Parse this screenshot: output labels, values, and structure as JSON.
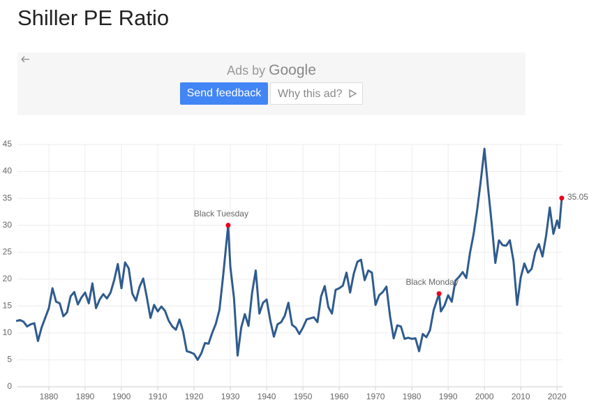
{
  "header": {
    "title": "Shiller PE Ratio"
  },
  "ad": {
    "ads_by": "Ads by",
    "brand": "Google",
    "send_feedback": "Send feedback",
    "why_this_ad": "Why this ad?"
  },
  "chart_data": {
    "type": "line",
    "x": [
      1871,
      1872,
      1873,
      1874,
      1875,
      1876,
      1877,
      1878,
      1879,
      1880,
      1881,
      1882,
      1883,
      1884,
      1885,
      1886,
      1887,
      1888,
      1889,
      1890,
      1891,
      1892,
      1893,
      1894,
      1895,
      1896,
      1897,
      1898,
      1899,
      1900,
      1901,
      1902,
      1903,
      1904,
      1905,
      1906,
      1907,
      1908,
      1909,
      1910,
      1911,
      1912,
      1913,
      1914,
      1915,
      1916,
      1917,
      1918,
      1919,
      1920,
      1921,
      1922,
      1923,
      1924,
      1925,
      1926,
      1927,
      1928,
      1929.4,
      1930,
      1931,
      1932,
      1933,
      1934,
      1935,
      1936,
      1937,
      1938,
      1939,
      1940,
      1941,
      1942,
      1943,
      1944,
      1945,
      1946,
      1947,
      1948,
      1949,
      1950,
      1951,
      1952,
      1953,
      1954,
      1955,
      1956,
      1957,
      1958,
      1959,
      1960,
      1961,
      1962,
      1963,
      1964,
      1965,
      1966,
      1967,
      1968,
      1969,
      1970,
      1971,
      1972,
      1973,
      1974,
      1975,
      1976,
      1977,
      1978,
      1979,
      1980,
      1981,
      1982,
      1983,
      1984,
      1985,
      1986,
      1987.5,
      1988,
      1989,
      1990,
      1991,
      1992,
      1993,
      1994,
      1995,
      1996,
      1997,
      1998,
      1999,
      2000,
      2001,
      2002,
      2003,
      2004,
      2005,
      2006,
      2007,
      2008,
      2009,
      2010,
      2011,
      2012,
      2013,
      2014,
      2015,
      2016,
      2017,
      2018,
      2019,
      2020,
      2020.6,
      2021.3
    ],
    "series": [
      {
        "color": "#2f5b8e",
        "values": [
          12.2,
          12.4,
          12.1,
          11.2,
          11.6,
          11.8,
          8.5,
          11.0,
          12.8,
          14.6,
          18.3,
          15.8,
          15.5,
          13.1,
          13.8,
          16.8,
          17.6,
          15.3,
          16.6,
          17.5,
          15.5,
          19.2,
          14.6,
          16.2,
          17.2,
          16.4,
          17.5,
          19.8,
          22.8,
          18.3,
          23.1,
          22.0,
          17.3,
          16.0,
          18.6,
          20.1,
          16.6,
          12.8,
          15.2,
          14.0,
          14.9,
          14.1,
          12.3,
          11.2,
          10.6,
          12.5,
          10.2,
          6.6,
          6.4,
          6.1,
          5.0,
          6.2,
          8.1,
          8.0,
          10.0,
          11.7,
          14.3,
          20.5,
          30.0,
          22.3,
          16.5,
          5.8,
          11.0,
          13.5,
          11.3,
          17.5,
          21.6,
          13.6,
          15.6,
          16.2,
          12.3,
          9.3,
          11.6,
          12.0,
          13.2,
          15.6,
          11.5,
          11.0,
          9.8,
          11.0,
          12.5,
          12.7,
          12.9,
          12.0,
          16.8,
          18.7,
          14.8,
          13.6,
          18.0,
          18.3,
          18.8,
          21.2,
          17.5,
          21.0,
          23.2,
          23.6,
          19.8,
          21.6,
          21.2,
          15.2,
          17.0,
          17.6,
          18.6,
          13.1,
          9.0,
          11.4,
          11.2,
          8.9,
          9.1,
          8.9,
          9.0,
          6.6,
          9.8,
          9.2,
          10.5,
          14.2,
          17.3,
          14.0,
          15.1,
          17.0,
          15.8,
          19.7,
          20.4,
          21.3,
          20.2,
          24.8,
          28.3,
          32.9,
          38.3,
          44.2,
          36.9,
          30.3,
          23.0,
          27.2,
          26.3,
          26.2,
          27.2,
          23.4,
          15.2,
          20.3,
          22.9,
          21.2,
          21.9,
          25.0,
          26.5,
          24.2,
          28.1,
          33.3,
          28.4,
          30.9,
          29.5,
          35.05
        ]
      }
    ],
    "annotations": [
      {
        "label": "Black Tuesday",
        "x": 1929.4,
        "y": 30.0,
        "color": "#e8001c"
      },
      {
        "label": "Black Monday",
        "x": 1987.5,
        "y": 17.3,
        "color": "#e8001c"
      },
      {
        "label": "35.05",
        "x": 2021.3,
        "y": 35.05,
        "color": "#e8001c"
      }
    ],
    "xlim": [
      1871.35,
      2021.5
    ],
    "ylim": [
      0,
      45
    ],
    "xticks": [
      1880,
      1890,
      1900,
      1910,
      1920,
      1930,
      1940,
      1950,
      1960,
      1970,
      1980,
      1990,
      2000,
      2010,
      2020
    ],
    "yticks": [
      0,
      5,
      10,
      15,
      20,
      25,
      30,
      35,
      40,
      45
    ],
    "grid": true
  }
}
